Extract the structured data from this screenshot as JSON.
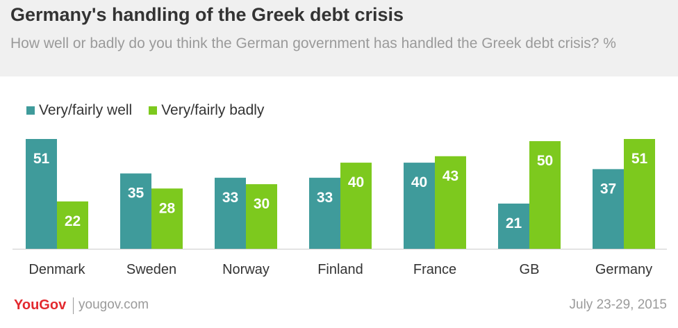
{
  "title": "Germany's handling of the Greek debt crisis",
  "subtitle": "How well or badly do you think the German government has handled the Greek debt crisis? %",
  "colors": {
    "well": "#3f9b9b",
    "badly": "#7dc91e"
  },
  "chart_data": {
    "type": "bar",
    "categories": [
      "Denmark",
      "Sweden",
      "Norway",
      "Finland",
      "France",
      "GB",
      "Germany"
    ],
    "series": [
      {
        "name": "Very/fairly well",
        "values": [
          51,
          35,
          33,
          33,
          40,
          21,
          37
        ]
      },
      {
        "name": "Very/fairly badly",
        "values": [
          22,
          28,
          30,
          40,
          43,
          50,
          51
        ]
      }
    ],
    "title": "Germany's handling of the Greek debt crisis",
    "xlabel": "",
    "ylabel": "",
    "ylim": [
      0,
      51
    ],
    "grid": false,
    "legend": "top-left"
  },
  "footer": {
    "brand": "YouGov",
    "site": "yougov.com",
    "date": "July 23-29, 2015"
  }
}
